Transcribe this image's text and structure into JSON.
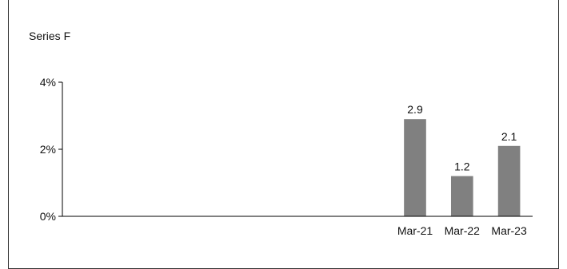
{
  "chart_data": {
    "type": "bar",
    "title": "Series F",
    "categories": [
      "",
      "",
      "",
      "",
      "",
      "",
      "",
      "Mar-21",
      "Mar-22",
      "Mar-23"
    ],
    "values": [
      null,
      null,
      null,
      null,
      null,
      null,
      null,
      2.9,
      1.2,
      2.1
    ],
    "data_labels": [
      "",
      "",
      "",
      "",
      "",
      "",
      "",
      "2.9",
      "1.2",
      "2.1"
    ],
    "y_ticks": [
      "0%",
      "2%",
      "4%"
    ],
    "y_tick_values": [
      0,
      2,
      4
    ],
    "ylim": [
      0,
      4
    ],
    "grid": false,
    "bar_color": "#808080",
    "axis_color": "#000000"
  }
}
